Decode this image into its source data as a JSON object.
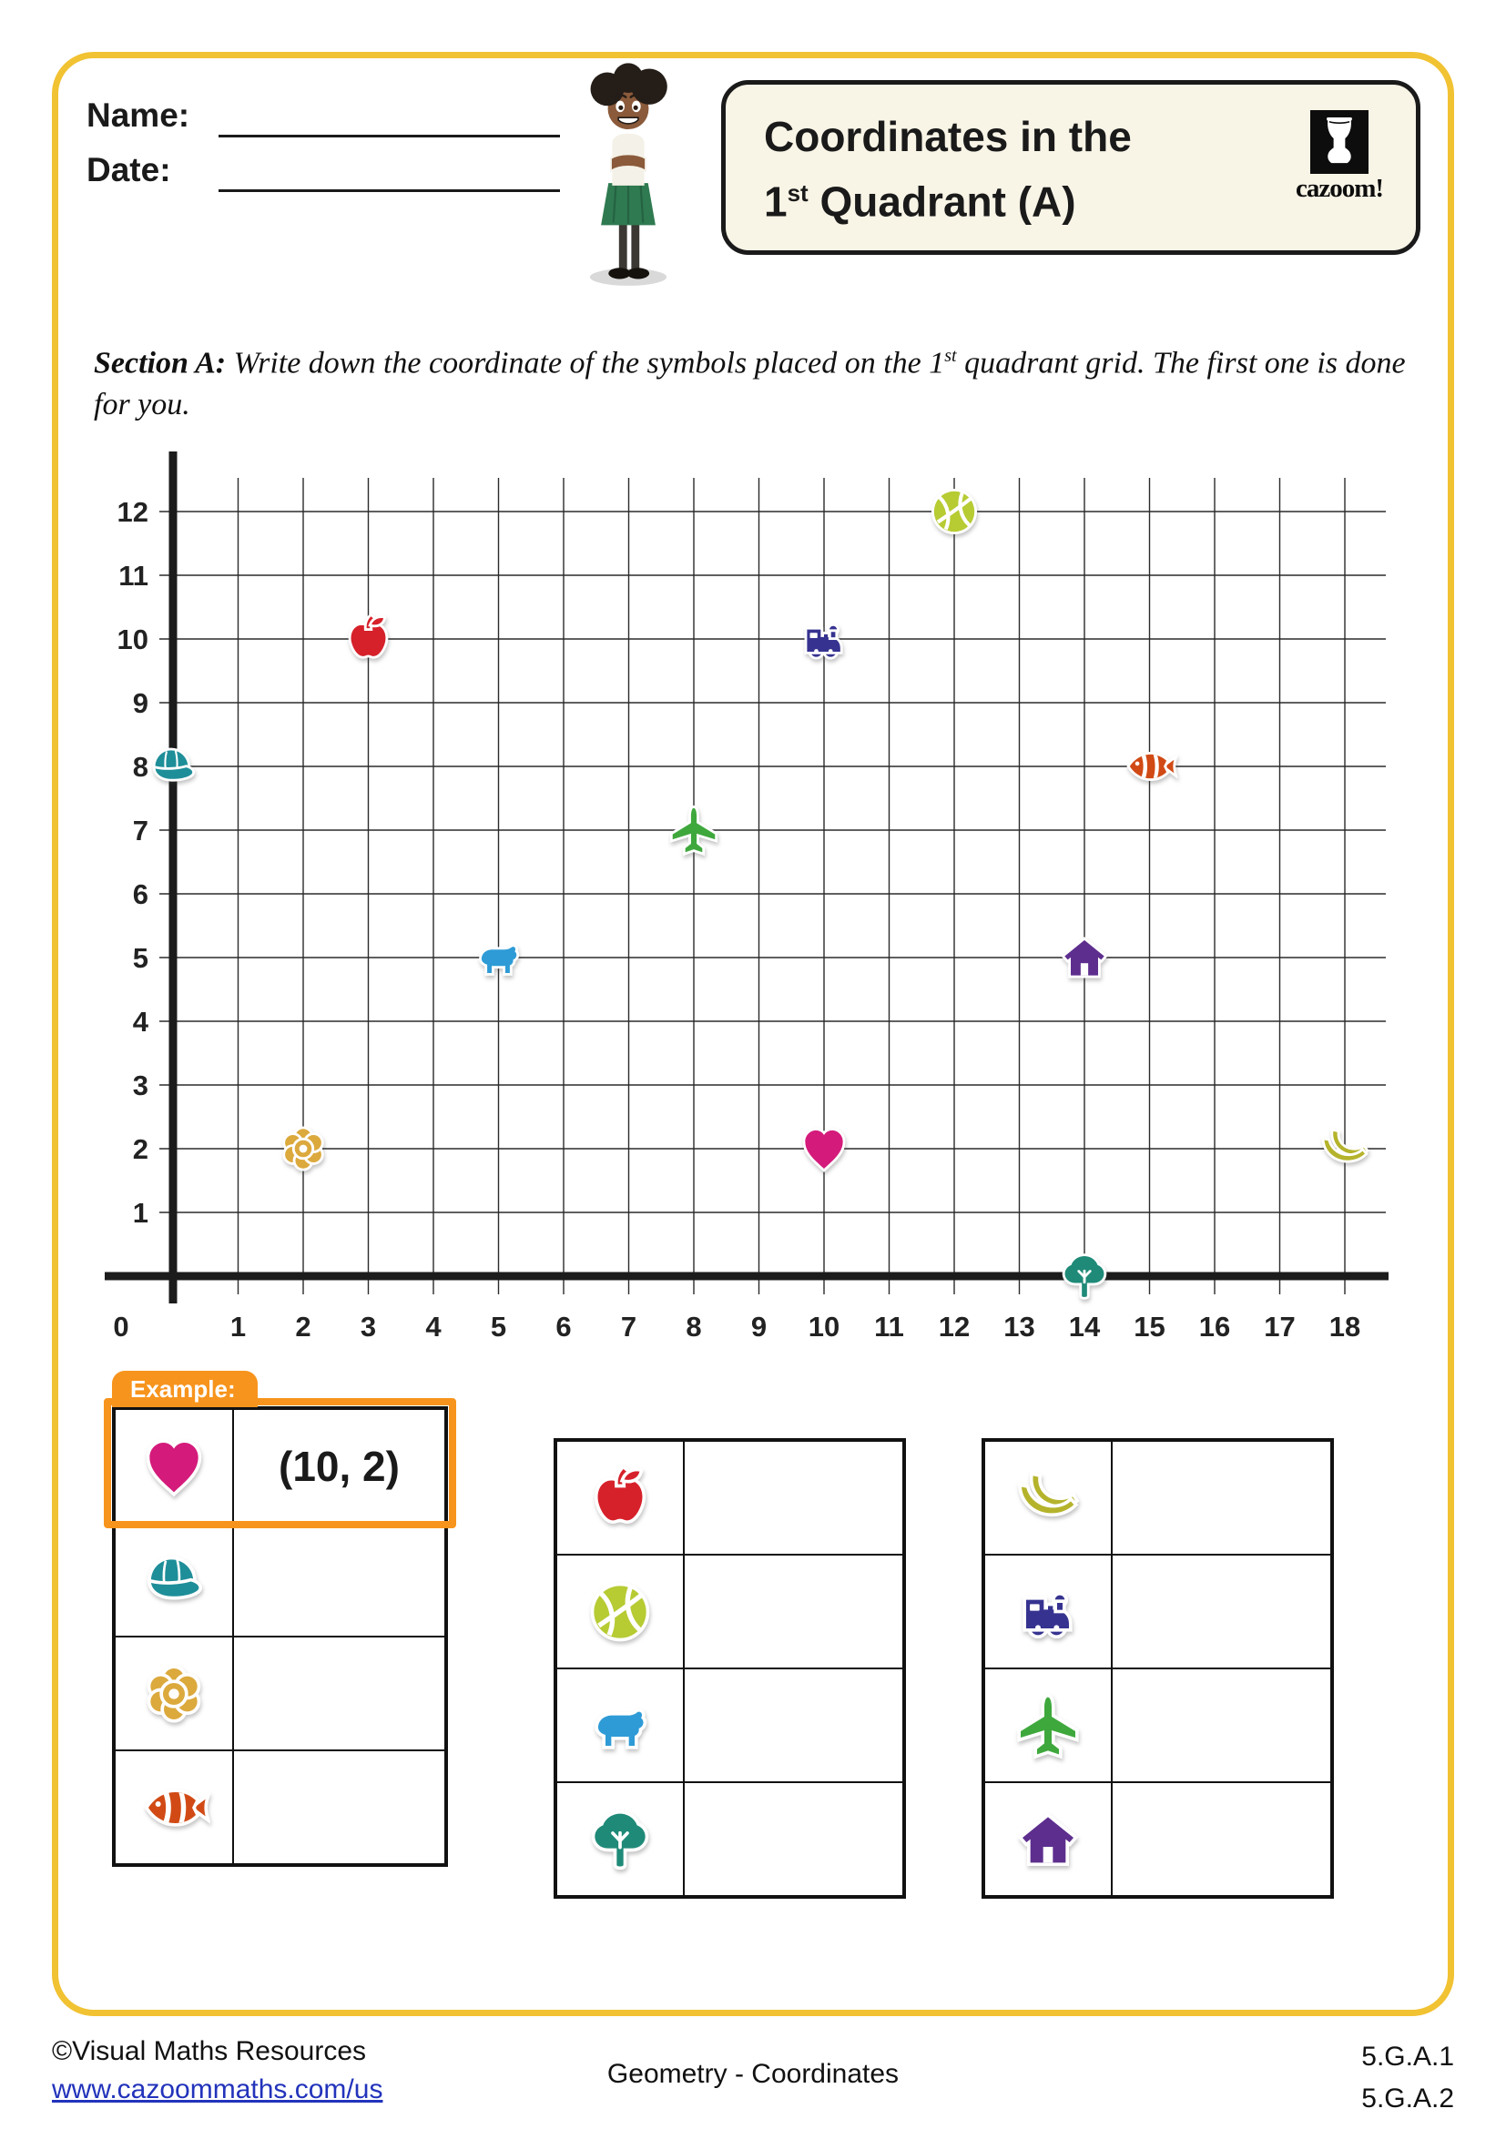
{
  "header": {
    "name_label": "Name:",
    "date_label": "Date:",
    "title_line1": "Coordinates in the",
    "title_line2_pre": "1",
    "title_line2_sup": "st",
    "title_line2_post": " Quadrant (A)",
    "logo_word": "cazoom!"
  },
  "section": {
    "label": "Section A:",
    "text_pre": "  Write down the coordinate of the symbols placed on the 1",
    "text_sup": "st",
    "text_post": " quadrant grid. The first one is done for you."
  },
  "chart_data": {
    "type": "scatter",
    "title": "First quadrant coordinate grid with picture symbols",
    "xlabel": "",
    "ylabel": "",
    "x_range": [
      0,
      18
    ],
    "y_range": [
      0,
      12
    ],
    "x_ticks": [
      0,
      1,
      2,
      3,
      4,
      5,
      6,
      7,
      8,
      9,
      10,
      11,
      12,
      13,
      14,
      15,
      16,
      17,
      18
    ],
    "y_ticks": [
      1,
      2,
      3,
      4,
      5,
      6,
      7,
      8,
      9,
      10,
      11,
      12
    ],
    "grid": "on",
    "symbols": [
      {
        "icon": "cap",
        "x": 0,
        "y": 8
      },
      {
        "icon": "flower",
        "x": 2,
        "y": 2
      },
      {
        "icon": "apple",
        "x": 3,
        "y": 10
      },
      {
        "icon": "bear",
        "x": 5,
        "y": 5
      },
      {
        "icon": "airplane",
        "x": 8,
        "y": 7
      },
      {
        "icon": "train",
        "x": 10,
        "y": 10
      },
      {
        "icon": "heart",
        "x": 10,
        "y": 2
      },
      {
        "icon": "basketball",
        "x": 12,
        "y": 12
      },
      {
        "icon": "house",
        "x": 14,
        "y": 5
      },
      {
        "icon": "tree",
        "x": 14,
        "y": 0
      },
      {
        "icon": "fish",
        "x": 15,
        "y": 8
      },
      {
        "icon": "banana",
        "x": 18,
        "y": 2
      }
    ]
  },
  "icon_colors": {
    "heart": "#D41A7B",
    "cap": "#1E8E99",
    "flower": "#DCA93D",
    "fish": "#D14A15",
    "apple": "#D6212B",
    "basketball": "#B7CB33",
    "bear": "#2E9BD6",
    "tree": "#1F8A78",
    "banana": "#B5B32B",
    "train": "#363390",
    "airplane": "#3FA83D",
    "house": "#5D2E8E"
  },
  "tables": {
    "example_label": "Example:",
    "groups": [
      {
        "rows": [
          {
            "icon": "heart",
            "answer": "(10, 2)",
            "is_example": true
          },
          {
            "icon": "cap",
            "answer": ""
          },
          {
            "icon": "flower",
            "answer": ""
          },
          {
            "icon": "fish",
            "answer": ""
          }
        ]
      },
      {
        "rows": [
          {
            "icon": "apple",
            "answer": ""
          },
          {
            "icon": "basketball",
            "answer": ""
          },
          {
            "icon": "bear",
            "answer": ""
          },
          {
            "icon": "tree",
            "answer": ""
          }
        ]
      },
      {
        "rows": [
          {
            "icon": "banana",
            "answer": ""
          },
          {
            "icon": "train",
            "answer": ""
          },
          {
            "icon": "airplane",
            "answer": ""
          },
          {
            "icon": "house",
            "answer": ""
          }
        ]
      }
    ]
  },
  "footer": {
    "copyright": "©Visual Maths Resources",
    "url": "www.cazoommaths.com/us",
    "center": "Geometry - Coordinates",
    "standards": [
      "5.G.A.1",
      "5.G.A.2"
    ]
  },
  "colors": {
    "page_border": "#F1C232",
    "accent_orange": "#F7941D",
    "title_box_bg": "#F8F4E6",
    "grid_line": "#2b2b2b",
    "axis": "#1c1c1c",
    "link_blue": "#2233BB"
  }
}
